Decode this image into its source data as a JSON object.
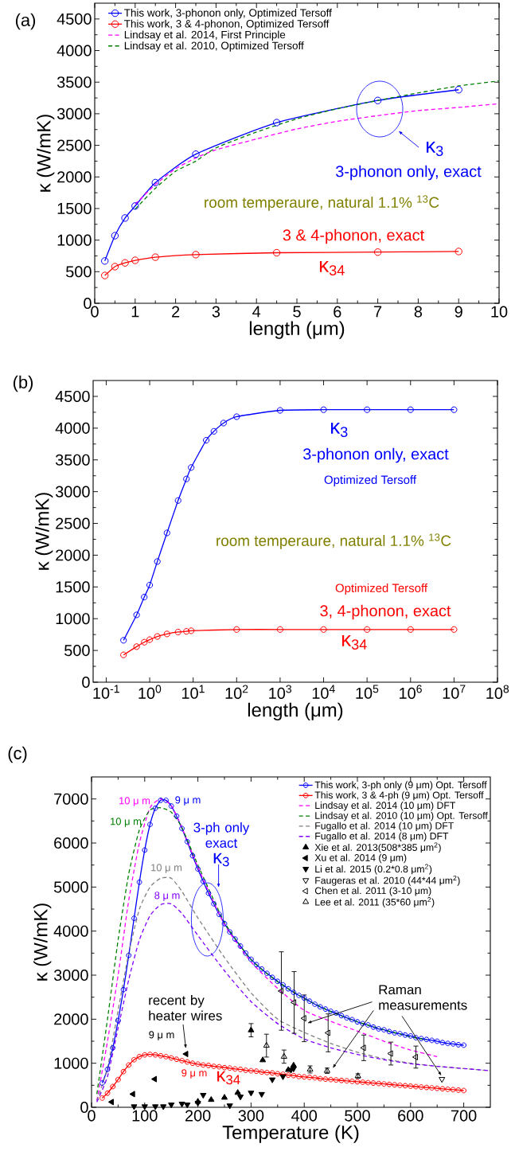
{
  "chart_data": [
    {
      "type": "line",
      "xlabel": "length (μm)",
      "ylabel": "κ (W/mK)",
      "xlim": [
        0,
        10
      ],
      "ylim": [
        0,
        4750
      ],
      "xticks": [
        0,
        1,
        2,
        3,
        4,
        5,
        6,
        7,
        8,
        9,
        10
      ],
      "yticks": [
        0,
        500,
        1000,
        1500,
        2000,
        2500,
        3000,
        3500,
        4000,
        4500
      ],
      "legend": "top left",
      "annotations": [
        "(a)",
        "κ$_{3}$",
        "3-phonon only, exact",
        "room temperaure, natural 1.1% $^{13}$C",
        "3 & 4-phonon, exact",
        "κ$_{34}$"
      ],
      "series": [
        {
          "name": "This work, 3-phonon only, Optimized Tersoff",
          "color": "#0000ff",
          "marker": "circle",
          "line_style": "solid",
          "x": [
            0.25,
            0.5,
            0.75,
            1,
            1.5,
            2.5,
            4.5,
            7,
            9
          ],
          "values": [
            670,
            1070,
            1350,
            1540,
            1910,
            2360,
            2860,
            3210,
            3380
          ]
        },
        {
          "name": "This work, 3 & 4-phonon, Optimized Tersoff",
          "color": "#ff0000",
          "marker": "circle",
          "line_style": "solid",
          "x": [
            0.25,
            0.5,
            0.75,
            1,
            1.5,
            2.5,
            4.5,
            7,
            9
          ],
          "values": [
            440,
            580,
            640,
            680,
            730,
            770,
            800,
            810,
            820
          ]
        },
        {
          "name": "Lindsay et al. 2014, First Principle",
          "color": "#ff00ff",
          "marker": "none",
          "line_style": "dashed",
          "x": [
            1,
            1.5,
            2,
            2.5,
            3,
            4,
            5,
            6,
            7,
            8,
            9,
            10
          ],
          "values": [
            1570,
            1880,
            2130,
            2300,
            2430,
            2600,
            2760,
            2880,
            2970,
            3050,
            3100,
            3160
          ]
        },
        {
          "name": "Lindsay et al. 2010, Optimized Tersoff",
          "color": "#008000",
          "marker": "none",
          "line_style": "dashed",
          "x": [
            1,
            1.5,
            2,
            2.5,
            3,
            4,
            5,
            6,
            7,
            8,
            9,
            10
          ],
          "values": [
            1490,
            1820,
            2090,
            2250,
            2460,
            2710,
            2920,
            3080,
            3210,
            3330,
            3440,
            3520
          ]
        }
      ]
    },
    {
      "type": "line",
      "xlabel": "length (μm)",
      "ylabel": "κ (W/mK)",
      "log": "x",
      "xlim": [
        0.05,
        100000000
      ],
      "ylim": [
        0,
        4750
      ],
      "xticks": [
        {
          "value": 0.1,
          "label": "10$^{-1}$"
        },
        {
          "value": 1,
          "label": "10$^{0}$"
        },
        {
          "value": 10,
          "label": "10$^{1}$"
        },
        {
          "value": 100,
          "label": "10$^{2}$"
        },
        {
          "value": 1000,
          "label": "10$^{3}$"
        },
        {
          "value": 10000,
          "label": "10$^{4}$"
        },
        {
          "value": 100000,
          "label": "10$^{5}$"
        },
        {
          "value": 1000000,
          "label": "10$^{6}$"
        },
        {
          "value": 10000000,
          "label": "10$^{7}$"
        },
        {
          "value": 100000000,
          "label": "10$^{8}$"
        }
      ],
      "yticks": [
        0,
        500,
        1000,
        1500,
        2000,
        2500,
        3000,
        3500,
        4000,
        4500
      ],
      "annotations": [
        "(b)",
        "κ$_{3}$",
        "3-phonon only, exact",
        "Optimized Tersoff",
        "room temperaure, natural 1.1% $^{13}$C",
        "Optimized Tersoff",
        "3, 4-phonon, exact",
        "κ$_{34}$"
      ],
      "series": [
        {
          "color": "#0000ff",
          "marker": "circle",
          "line_style": "solid",
          "x": [
            0.25,
            0.5,
            0.75,
            1,
            1.5,
            2.5,
            4.5,
            7,
            9,
            20,
            30,
            50,
            100,
            1000,
            10000,
            100000,
            1000000,
            10000000
          ],
          "values": [
            660,
            1060,
            1340,
            1530,
            1900,
            2350,
            2860,
            3200,
            3380,
            3810,
            3950,
            4080,
            4180,
            4280,
            4290,
            4290,
            4290,
            4290
          ]
        },
        {
          "color": "#ff0000",
          "marker": "circle",
          "line_style": "solid",
          "x": [
            0.25,
            0.5,
            0.75,
            1,
            1.5,
            2.5,
            4.5,
            7,
            9,
            100,
            1000,
            10000,
            100000,
            1000000,
            10000000
          ],
          "values": [
            430,
            560,
            630,
            670,
            720,
            760,
            790,
            800,
            810,
            830,
            830,
            830,
            830,
            830,
            830
          ]
        }
      ]
    },
    {
      "type": "line",
      "xlabel": "Temperature (K)",
      "ylabel": "κ (W/mK)",
      "xlim": [
        0,
        750
      ],
      "ylim": [
        0,
        7500
      ],
      "xticks": [
        0,
        100,
        200,
        300,
        400,
        500,
        600,
        700
      ],
      "yticks": [
        0,
        1000,
        2000,
        3000,
        4000,
        5000,
        6000,
        7000
      ],
      "legend": "top right",
      "annotations": [
        "(c)",
        "10 μ m",
        "9 μ m",
        "10 μ m",
        "3-ph only exact",
        "κ$_{3}$",
        "10 μ m",
        "8 μ m",
        "recent by heater wires",
        "9 μ m",
        "9 μ m",
        "κ$_{34}$",
        "Raman measurements"
      ],
      "series": [
        {
          "name": "This work, 3-ph only (9 μm) Opt. Tersoff",
          "color": "#0000ff",
          "marker": "circle",
          "line_style": "solid",
          "x": [
            20,
            30,
            40,
            50,
            60,
            70,
            80,
            90,
            100,
            110,
            120,
            130,
            140,
            150,
            160,
            170,
            180,
            190,
            200,
            210,
            220,
            230,
            240,
            250,
            260,
            270,
            280,
            290,
            300,
            310,
            320,
            330,
            340,
            350,
            360,
            370,
            380,
            390,
            400,
            410,
            420,
            430,
            440,
            450,
            460,
            470,
            480,
            490,
            500,
            510,
            520,
            530,
            540,
            550,
            560,
            570,
            580,
            590,
            600,
            610,
            620,
            630,
            640,
            650,
            660,
            670,
            680,
            690,
            700
          ],
          "values": [
            550,
            860,
            1350,
            1970,
            2670,
            3450,
            4290,
            5110,
            5840,
            6420,
            6790,
            6970,
            6970,
            6840,
            6610,
            6330,
            6030,
            5710,
            5410,
            5130,
            4860,
            4620,
            4380,
            4170,
            3980,
            3820,
            3660,
            3500,
            3360,
            3240,
            3140,
            3040,
            2950,
            2860,
            2780,
            2690,
            2610,
            2540,
            2480,
            2410,
            2340,
            2280,
            2230,
            2180,
            2140,
            2080,
            2030,
            1990,
            1940,
            1900,
            1870,
            1820,
            1780,
            1760,
            1720,
            1690,
            1670,
            1640,
            1620,
            1580,
            1560,
            1540,
            1520,
            1500,
            1470,
            1450,
            1440,
            1420,
            1410
          ]
        },
        {
          "name": "This work, 3 & 4-ph (9 μm) Opt. Tersoff",
          "color": "#ff0000",
          "marker": "circle",
          "line_style": "solid",
          "x": [
            20,
            30,
            40,
            50,
            60,
            70,
            80,
            90,
            100,
            110,
            120,
            130,
            140,
            150,
            160,
            170,
            180,
            190,
            200,
            210,
            220,
            230,
            240,
            250,
            260,
            270,
            280,
            290,
            300,
            310,
            320,
            330,
            340,
            350,
            360,
            370,
            380,
            390,
            400,
            410,
            420,
            430,
            440,
            450,
            460,
            470,
            480,
            490,
            500,
            510,
            520,
            530,
            540,
            550,
            560,
            570,
            580,
            590,
            600,
            610,
            620,
            630,
            640,
            650,
            660,
            670,
            680,
            690,
            700
          ],
          "values": [
            210,
            320,
            470,
            630,
            810,
            960,
            1080,
            1150,
            1190,
            1200,
            1190,
            1170,
            1150,
            1120,
            1090,
            1060,
            1030,
            1000,
            980,
            960,
            950,
            930,
            920,
            900,
            890,
            870,
            860,
            840,
            830,
            820,
            800,
            790,
            780,
            760,
            750,
            730,
            720,
            700,
            690,
            680,
            670,
            650,
            640,
            630,
            620,
            610,
            600,
            590,
            580,
            570,
            560,
            550,
            540,
            530,
            520,
            510,
            500,
            490,
            480,
            470,
            460,
            450,
            440,
            430,
            420,
            410,
            400,
            390,
            380
          ]
        },
        {
          "name": "Lindsay et al. 2014 (10 μm) DFT",
          "color": "#ff00ff",
          "marker": "none",
          "line_style": "dashed",
          "x": [
            10,
            30,
            50,
            70,
            90,
            110,
            130,
            150,
            170,
            200,
            250,
            300,
            350,
            400,
            450,
            500,
            550,
            600,
            650
          ],
          "values": [
            150,
            1500,
            3000,
            4700,
            6000,
            6800,
            7000,
            6850,
            6350,
            5450,
            4150,
            3300,
            2700,
            2200,
            1950,
            1730,
            1500,
            1300,
            1150
          ]
        },
        {
          "name": "Lindsay et al. 2010 (10 μm) Opt. Tersoff",
          "color": "#008000",
          "marker": "none",
          "line_style": "dashed",
          "x": [
            10,
            30,
            50,
            70,
            90,
            110,
            130,
            150,
            170,
            200,
            250,
            300,
            350,
            400,
            450,
            500,
            550,
            600,
            630
          ],
          "values": [
            300,
            2000,
            3800,
            5300,
            6300,
            6750,
            6800,
            6700,
            6350,
            5500,
            4200,
            3350,
            2850,
            2470,
            2170,
            1940,
            1760,
            1600,
            1530
          ]
        },
        {
          "name": "Fugallo et al. 2014 (10 μm) DFT",
          "color": "#808080",
          "marker": "none",
          "line_style": "dashed",
          "x": [
            10,
            30,
            50,
            70,
            90,
            110,
            130,
            150,
            170,
            200,
            250,
            300,
            350,
            400,
            450,
            500,
            550,
            600,
            650,
            700,
            750
          ],
          "values": [
            150,
            900,
            2200,
            3500,
            4500,
            5000,
            5200,
            5200,
            4900,
            4300,
            3400,
            2600,
            2000,
            1700,
            1450,
            1250,
            1100,
            1000,
            930,
            880,
            830
          ]
        },
        {
          "name": "Fugallo et al. 2014 (8 μm) DFT",
          "color": "#8000ff",
          "marker": "none",
          "line_style": "dashed",
          "x": [
            10,
            30,
            50,
            70,
            90,
            110,
            130,
            150,
            170,
            200,
            250,
            300,
            350,
            400,
            450,
            500,
            550,
            600,
            650,
            700,
            750
          ],
          "values": [
            120,
            700,
            1800,
            2900,
            3800,
            4350,
            4600,
            4620,
            4400,
            3900,
            3100,
            2400,
            1900,
            1550,
            1350,
            1200,
            1080,
            990,
            930,
            880,
            830
          ]
        },
        {
          "name": "Xie et al. 2013(508*385 μm$^{2}$)",
          "type": "scatter",
          "color": "#000000",
          "marker": "triangle",
          "x": [
            200,
            225,
            250,
            275,
            300,
            322,
            370,
            380
          ],
          "values": [
            130,
            170,
            220,
            330,
            1750,
            1070,
            850,
            950
          ],
          "errors": [
            null,
            null,
            null,
            null,
            150,
            null,
            null,
            null
          ]
        },
        {
          "name": "Xu et al. 2014 (9 μm)",
          "type": "scatter",
          "color": "#000000",
          "marker": "triangle-left",
          "x": [
            38,
            78,
            119,
            178
          ],
          "values": [
            120,
            300,
            640,
            1210
          ]
        },
        {
          "name": "Li et al. 2015 (0.2*0.8 μm$^{2}$)",
          "type": "scatter",
          "color": "#000000",
          "marker": "triangle-down",
          "x": [
            80,
            100,
            120,
            135,
            150,
            170,
            180,
            200,
            210,
            260,
            280,
            300,
            320,
            340,
            360,
            375,
            380
          ],
          "values": [
            20,
            20,
            20,
            20,
            60,
            80,
            60,
            100,
            280,
            40,
            240,
            330,
            300,
            630,
            700,
            850,
            880
          ]
        },
        {
          "name": "Faugeras et al. 2010 (44*44 μm$^{2}$)",
          "type": "scatter",
          "color": "#000000",
          "marker": "triangle-down-open",
          "x": [
            659
          ],
          "values": [
            640
          ]
        },
        {
          "name": "Chen et al. 2011 (3-10 μm)",
          "type": "scatter",
          "color": "#000000",
          "marker": "triangle-left-open",
          "x": [
            357,
            381,
            400,
            445,
            512,
            563,
            610
          ],
          "values": [
            2640,
            2380,
            2020,
            1690,
            1350,
            1220,
            1140
          ],
          "errors": [
            890,
            700,
            530,
            430,
            290,
            260,
            250
          ]
        },
        {
          "name": "Lee et al. 2011 (35*60 μm$^{2}$)",
          "type": "scatter",
          "color": "#000000",
          "marker": "triangle-open",
          "x": [
            329,
            362,
            411,
            443,
            501
          ],
          "values": [
            1400,
            1150,
            860,
            830,
            710
          ],
          "errors": [
            260,
            150,
            80,
            60,
            50
          ]
        }
      ]
    }
  ]
}
